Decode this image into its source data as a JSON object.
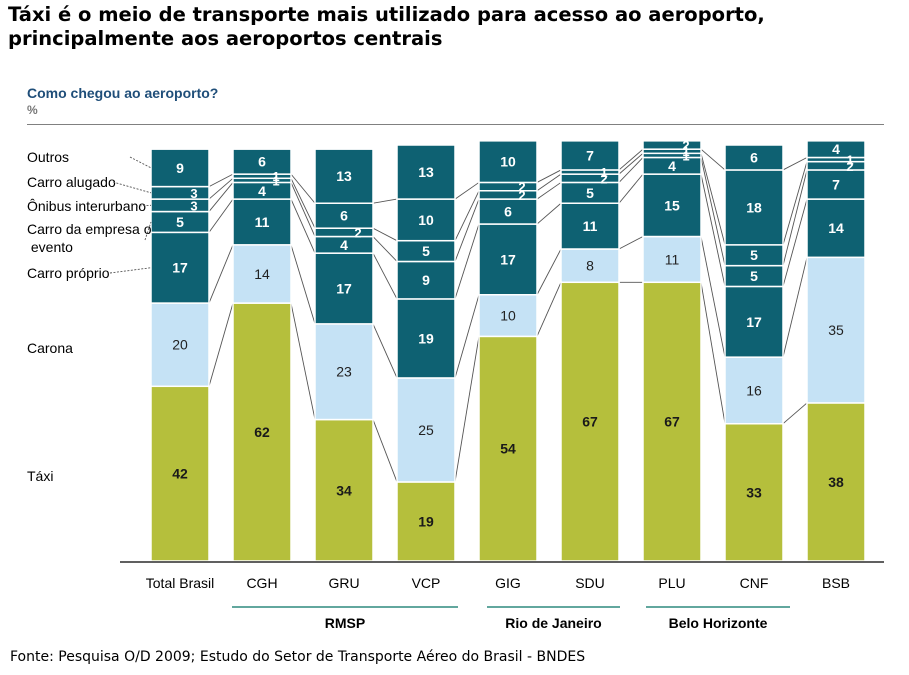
{
  "headline": "Táxi é o meio de transporte mais utilizado para acesso ao aeroporto, principalmente aos aeroportos centrais",
  "source": "Fonte: Pesquisa O/D 2009; Estudo do Setor de Transporte Aéreo do Brasil - BNDES",
  "colors": {
    "taxi": "#b5bf3c",
    "carona": "#c5e2f5",
    "dark": "#0e6172",
    "connector": "#555555"
  },
  "chart_data": {
    "type": "bar",
    "stacked": true,
    "subtitle": "Como chegou ao aeroporto?",
    "unit": "%",
    "categories": [
      "Total Brasil",
      "CGH",
      "GRU",
      "VCP",
      "GIG",
      "SDU",
      "PLU",
      "CNF",
      "BSB"
    ],
    "series_labels": [
      "Outros",
      "Carro alugado",
      "Ônibus interurbano",
      "Carro da empresa ou evento",
      "Carro próprio",
      "Carona",
      "Táxi"
    ],
    "series": [
      {
        "name": "Táxi",
        "values": [
          42,
          62,
          34,
          19,
          54,
          67,
          67,
          33,
          38
        ]
      },
      {
        "name": "Carona",
        "values": [
          20,
          14,
          23,
          25,
          10,
          8,
          11,
          16,
          35
        ]
      },
      {
        "name": "Carro próprio",
        "values": [
          17,
          11,
          17,
          19,
          17,
          11,
          15,
          17,
          14
        ]
      },
      {
        "name": "Carro da empresa ou evento",
        "values": [
          5,
          4,
          4,
          9,
          6,
          5,
          4,
          5,
          7
        ]
      },
      {
        "name": "Ônibus interurbano",
        "values": [
          3,
          1,
          2,
          5,
          2,
          2,
          1,
          5,
          2
        ]
      },
      {
        "name": "Carro alugado",
        "values": [
          3,
          1,
          6,
          10,
          2,
          1,
          1,
          18,
          1
        ]
      },
      {
        "name": "Outros",
        "values": [
          9,
          6,
          13,
          13,
          10,
          7,
          2,
          6,
          4
        ]
      }
    ],
    "groups": [
      {
        "label": "RMSP",
        "categories": [
          "CGH",
          "GRU",
          "VCP"
        ]
      },
      {
        "label": "Rio de Janeiro",
        "categories": [
          "GIG",
          "SDU"
        ]
      },
      {
        "label": "Belo Horizonte",
        "categories": [
          "PLU",
          "CNF"
        ]
      }
    ]
  }
}
